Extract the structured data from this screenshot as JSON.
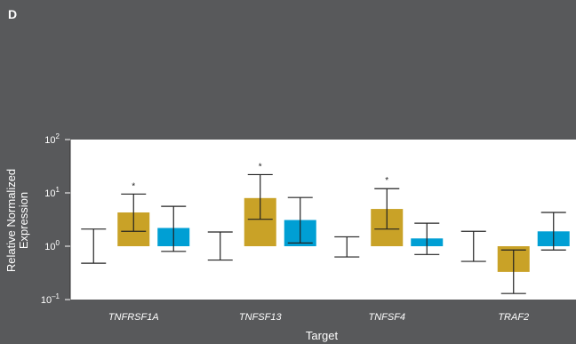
{
  "panel_label": "D",
  "chart_data": {
    "type": "bar",
    "scale": "log",
    "title": "",
    "xlabel": "Target",
    "ylabel_lines": [
      "Relative Normalized",
      "Expression"
    ],
    "ylim": [
      0.1,
      100
    ],
    "yticks": [
      {
        "value": 100,
        "base": "10",
        "exp": "2"
      },
      {
        "value": 10,
        "base": "10",
        "exp": "1"
      },
      {
        "value": 1,
        "base": "10",
        "exp": "0"
      },
      {
        "value": 0.1,
        "base": "10",
        "exp": "–1"
      }
    ],
    "categories": [
      "TNFRSF1A",
      "TNFSF13",
      "TNFSF4",
      "TRAF2"
    ],
    "series": [
      {
        "color": "#ffffff",
        "values": [
          1.0,
          1.0,
          1.0,
          1.0
        ],
        "err_low": [
          0.48,
          0.55,
          0.63,
          0.52
        ],
        "err_high": [
          2.1,
          1.85,
          1.5,
          1.9
        ]
      },
      {
        "color": "#c9a227",
        "values": [
          4.3,
          8.0,
          5.0,
          0.33
        ],
        "err_low": [
          1.9,
          3.2,
          2.1,
          0.13
        ],
        "err_high": [
          9.5,
          22.0,
          12.0,
          0.85
        ]
      },
      {
        "color": "#009fd4",
        "values": [
          2.2,
          3.1,
          1.4,
          1.9
        ],
        "err_low": [
          0.8,
          1.15,
          0.7,
          0.85
        ],
        "err_high": [
          5.6,
          8.2,
          2.7,
          4.3
        ]
      }
    ],
    "annotations": [
      {
        "category": "TNFRSF1A",
        "series": 1,
        "text": "*"
      },
      {
        "category": "TNFSF13",
        "series": 1,
        "text": "*"
      },
      {
        "category": "TNFSF4",
        "series": 1,
        "text": "*"
      }
    ],
    "colors": {
      "background": "#58595b",
      "plot_area": "#ffffff",
      "errorbar": "#222222"
    }
  }
}
